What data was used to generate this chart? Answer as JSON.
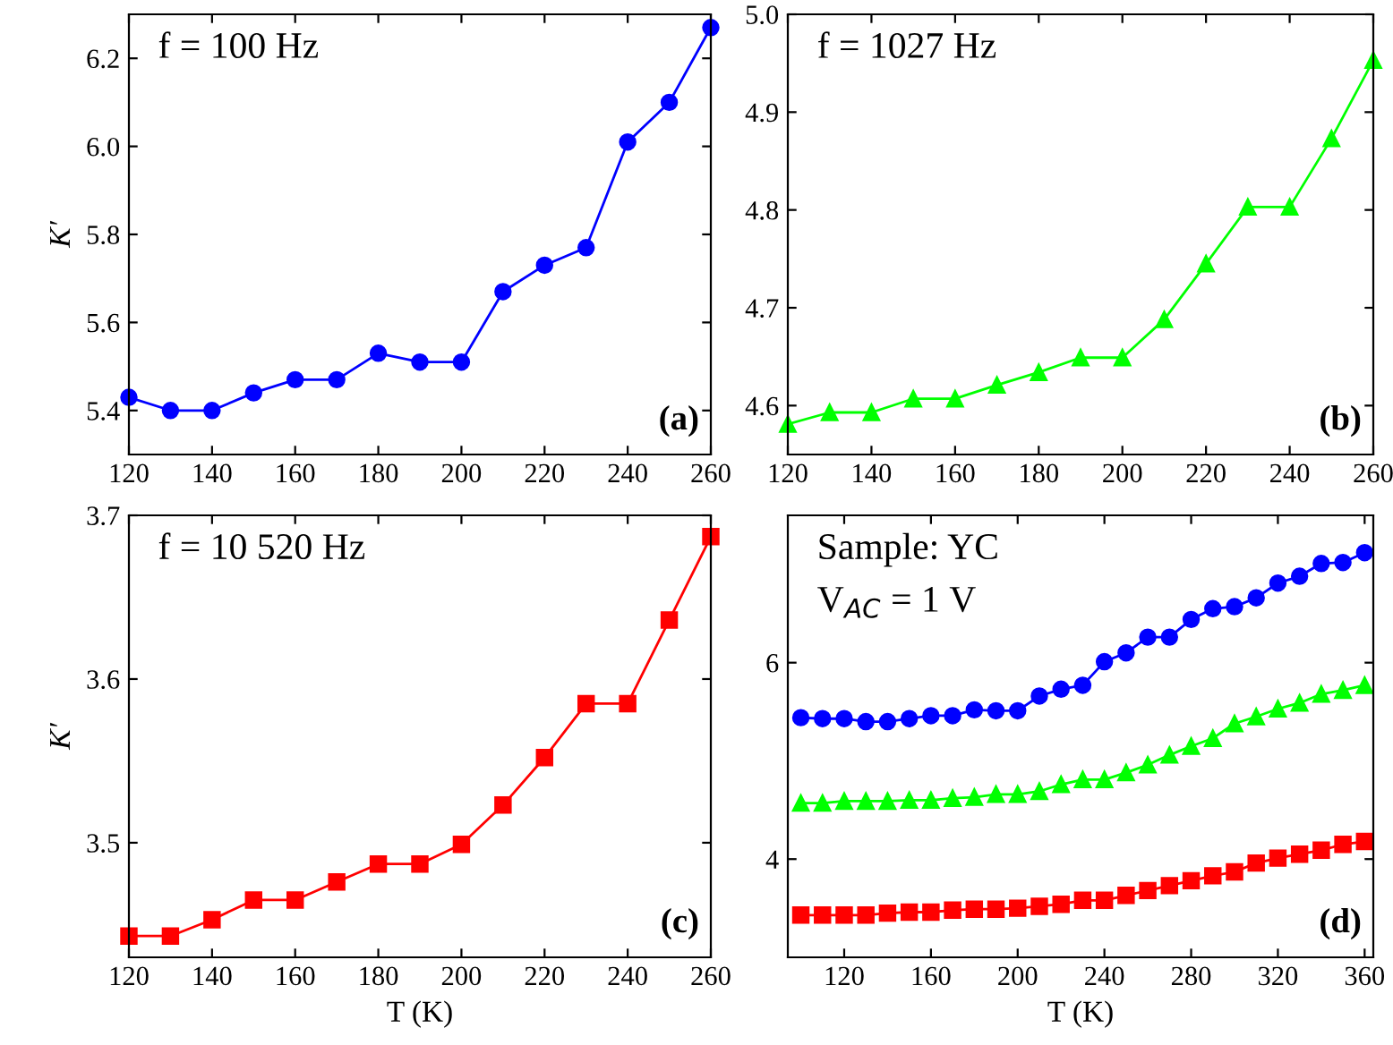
{
  "chart_data": [
    {
      "type": "line",
      "ylabel": "K′",
      "annotations": [
        "f = 100 Hz",
        "(a)"
      ],
      "x": [
        120,
        130,
        140,
        150,
        160,
        170,
        180,
        190,
        200,
        210,
        220,
        230,
        240,
        250,
        260
      ],
      "xlim": [
        120,
        260
      ],
      "xticks": [
        120,
        140,
        160,
        180,
        200,
        220,
        240,
        260
      ],
      "ylim": [
        5.3,
        6.3
      ],
      "yticks": [
        5.4,
        5.6,
        5.8,
        {
          "value": 6,
          "label": "6.0"
        },
        6.2
      ],
      "marker": "circle",
      "grid": false,
      "legend": false,
      "series": [
        {
          "color": "#0000ff",
          "values": [
            5.43,
            5.4,
            5.4,
            5.44,
            5.47,
            5.47,
            5.53,
            5.51,
            5.51,
            5.67,
            5.73,
            5.77,
            6.01,
            6.1,
            6.27
          ]
        }
      ]
    },
    {
      "type": "line",
      "annotations": [
        "f = 1027 Hz",
        "(b)"
      ],
      "x": [
        120,
        130,
        140,
        150,
        160,
        170,
        180,
        190,
        200,
        210,
        220,
        230,
        240,
        250,
        260
      ],
      "xlim": [
        120,
        260
      ],
      "xticks": [
        120,
        140,
        160,
        180,
        200,
        220,
        240,
        260
      ],
      "ylim": [
        4.55,
        5.0
      ],
      "yticks": [
        4.6,
        4.7,
        4.8,
        4.9,
        {
          "value": 5,
          "label": "5.0"
        }
      ],
      "marker": "triangle",
      "grid": false,
      "legend": false,
      "series": [
        {
          "color": "#00ff00",
          "values": [
            4.581,
            4.593,
            4.593,
            4.607,
            4.607,
            4.621,
            4.634,
            4.649,
            4.649,
            4.688,
            4.745,
            4.803,
            4.803,
            4.873,
            4.953
          ]
        }
      ]
    },
    {
      "type": "line",
      "xlabel": "T (K)",
      "ylabel": "K′",
      "annotations": [
        "f = 10 520 Hz",
        "(c)"
      ],
      "x": [
        120,
        130,
        140,
        150,
        160,
        170,
        180,
        190,
        200,
        210,
        220,
        230,
        240,
        250,
        260
      ],
      "xlim": [
        120,
        260
      ],
      "xticks": [
        120,
        140,
        160,
        180,
        200,
        220,
        240,
        260
      ],
      "ylim": [
        3.43,
        3.7
      ],
      "yticks": [
        3.5,
        3.6,
        3.7
      ],
      "marker": "square",
      "grid": false,
      "legend": false,
      "series": [
        {
          "color": "#ff0000",
          "values": [
            3.443,
            3.443,
            3.453,
            3.465,
            3.465,
            3.476,
            3.487,
            3.487,
            3.499,
            3.523,
            3.552,
            3.585,
            3.585,
            3.636,
            3.687
          ]
        }
      ]
    },
    {
      "type": "line",
      "xlabel": "T (K)",
      "annotations": [
        "Sample: YC",
        "V$_{AC}$ = 1 V",
        "(d)"
      ],
      "x": [
        100,
        110,
        120,
        130,
        140,
        150,
        160,
        170,
        180,
        190,
        200,
        210,
        220,
        230,
        240,
        250,
        260,
        270,
        280,
        290,
        300,
        310,
        320,
        330,
        340,
        350,
        360
      ],
      "xlim": [
        94,
        364
      ],
      "xticks": [
        120,
        160,
        200,
        240,
        280,
        320,
        360
      ],
      "ylim": [
        3.0,
        7.5
      ],
      "yticks": [
        4,
        6
      ],
      "grid": false,
      "legend": false,
      "series": [
        {
          "color": "#0000ff",
          "marker": "circle",
          "values": [
            5.44,
            5.43,
            5.43,
            5.4,
            5.4,
            5.43,
            5.46,
            5.46,
            5.52,
            5.51,
            5.51,
            5.66,
            5.73,
            5.77,
            6.01,
            6.1,
            6.26,
            6.26,
            6.44,
            6.55,
            6.57,
            6.66,
            6.81,
            6.88,
            7.01,
            7.02,
            7.12
          ]
        },
        {
          "color": "#00ff00",
          "marker": "triangle",
          "values": [
            4.57,
            4.57,
            4.59,
            4.59,
            4.59,
            4.6,
            4.6,
            4.62,
            4.63,
            4.66,
            4.66,
            4.69,
            4.76,
            4.81,
            4.81,
            4.88,
            4.96,
            5.06,
            5.15,
            5.23,
            5.38,
            5.45,
            5.53,
            5.59,
            5.68,
            5.72,
            5.77
          ]
        },
        {
          "color": "#ff0000",
          "marker": "square",
          "values": [
            3.43,
            3.43,
            3.43,
            3.43,
            3.45,
            3.46,
            3.46,
            3.48,
            3.49,
            3.49,
            3.5,
            3.52,
            3.54,
            3.58,
            3.58,
            3.63,
            3.68,
            3.73,
            3.78,
            3.83,
            3.87,
            3.96,
            4.01,
            4.05,
            4.09,
            4.15,
            4.18
          ]
        }
      ]
    }
  ]
}
